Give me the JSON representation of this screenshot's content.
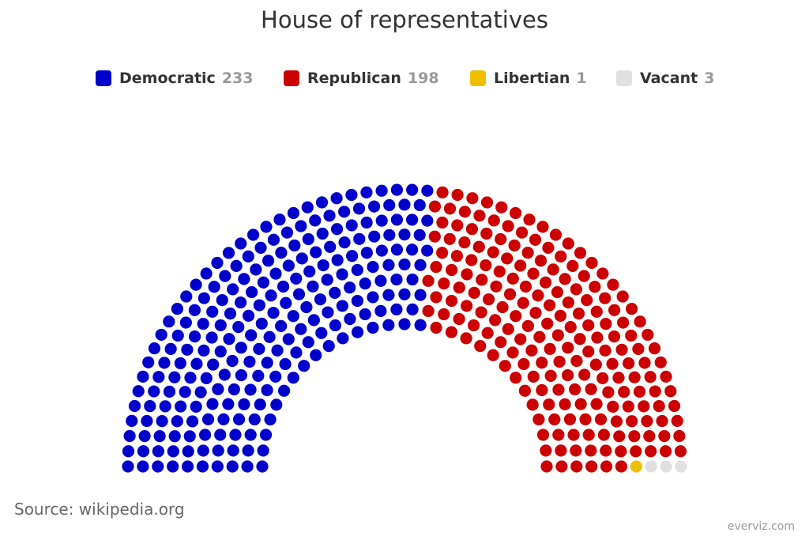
{
  "chart_data": {
    "type": "parliament",
    "title": "House of representatives",
    "series": [
      {
        "name": "Democratic",
        "value": 233,
        "color": "#0000cc"
      },
      {
        "name": "Republican",
        "value": 198,
        "color": "#cc0000"
      },
      {
        "name": "Libertian",
        "value": 1,
        "color": "#f0c000"
      },
      {
        "name": "Vacant",
        "value": 3,
        "color": "#e0e0e0"
      }
    ],
    "total_seats": 435,
    "legend_position": "top"
  },
  "credits": {
    "source": "Source: wikipedia.org",
    "brand": "everviz.com"
  }
}
